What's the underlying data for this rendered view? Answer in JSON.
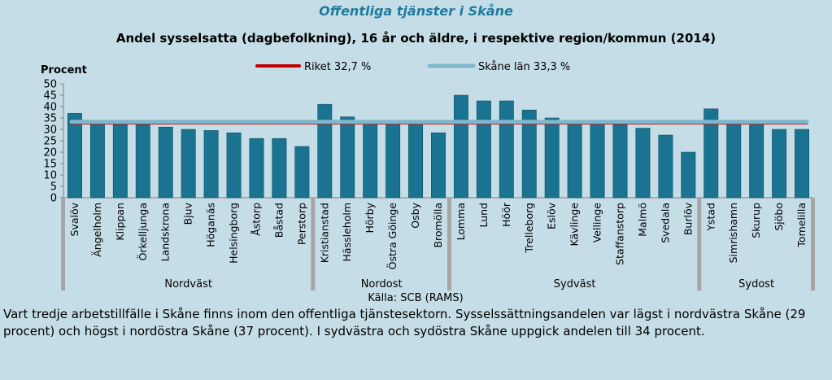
{
  "header": {
    "title": "Offentliga tjänster i Skåne",
    "subtitle": "Andel sysselsatta (dagbefolkning), 16 år och äldre, i respektive region/kommun (2014)"
  },
  "caption": "Vart tredje arbetstillfälle i Skåne finns inom den offentliga tjänstesektorn. Sysselssättningsandelen var lägst i nordvästra Skåne (29 procent) och högst i nordöstra Skåne (37 procent). I sydvästra och sydöstra Skåne uppgick andelen till 34 procent.",
  "colors": {
    "bar": "#1a7390",
    "bar_edge": "#0f4f66",
    "riket_line": "#c00000",
    "skane_line": "#7fb7cc",
    "plot_bg": "#c5dde6",
    "region_divider": "#a6a6a6"
  },
  "chart_data": {
    "type": "bar",
    "title": "Andel sysselsatta (dagbefolkning), 16 år och äldre, i respektive region/kommun (2014)",
    "ylabel": "Procent",
    "ylim": [
      0,
      50
    ],
    "yticks": [
      0,
      5,
      10,
      15,
      20,
      25,
      30,
      35,
      40,
      45,
      50
    ],
    "grid": false,
    "legend_position": "top",
    "source": "Källa: SCB (RAMS)",
    "categories": [
      "Svalöv",
      "Ängelholm",
      "Klippan",
      "Örkelljunga",
      "Landskrona",
      "Bjuv",
      "Höganäs",
      "Helsingborg",
      "Åstorp",
      "Båstad",
      "Perstorp",
      "Kristianstad",
      "Hässleholm",
      "Hörby",
      "Östra Göinge",
      "Osby",
      "Bromölla",
      "Lomma",
      "Lund",
      "Höör",
      "Trelleborg",
      "Eslöv",
      "Kävlinge",
      "Vellinge",
      "Staffanstorp",
      "Malmö",
      "Svedala",
      "Burlöv",
      "Ystad",
      "Simrishamn",
      "Skurup",
      "Sjöbo",
      "Tomelilla"
    ],
    "series": [
      {
        "values": [
          37,
          33,
          32,
          32,
          31,
          30,
          29.5,
          28.5,
          26,
          26,
          22.5,
          41,
          35.5,
          33,
          33,
          33,
          28.5,
          45,
          42.5,
          42.5,
          38.5,
          35,
          33,
          32.5,
          32,
          30.5,
          27.5,
          20,
          39,
          33,
          32.5,
          30,
          30
        ]
      }
    ],
    "reference_lines": [
      {
        "name": "Riket 32,7 %",
        "value": 32.7,
        "color": "#c00000"
      },
      {
        "name": "Skåne län 33,3 %",
        "value": 33.3,
        "color": "#7fb7cc"
      }
    ],
    "groups": [
      {
        "name": "Nordväst",
        "start": 0,
        "end": 10
      },
      {
        "name": "Nordost",
        "start": 11,
        "end": 16
      },
      {
        "name": "Sydväst",
        "start": 17,
        "end": 27
      },
      {
        "name": "Sydost",
        "start": 28,
        "end": 32
      }
    ]
  }
}
